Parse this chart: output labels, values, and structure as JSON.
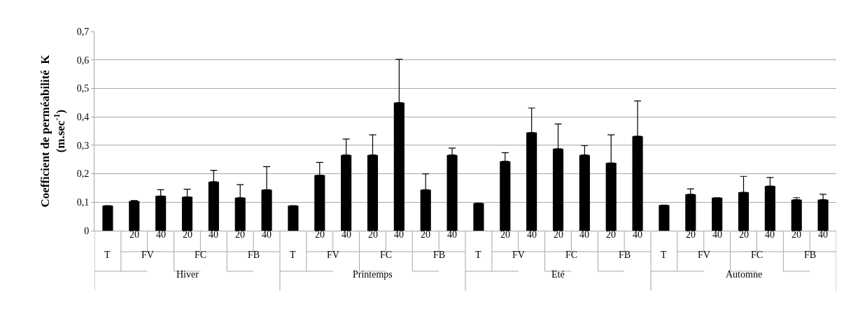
{
  "chart_data": {
    "type": "bar",
    "ylabel": "Coefficient de perméabilité  K\n(m.sec$^{-1}$)",
    "categories": [
      [
        "Hiver",
        "T",
        null
      ],
      [
        null,
        "FV",
        "20"
      ],
      [
        null,
        null,
        "40"
      ],
      [
        null,
        "FC",
        "20"
      ],
      [
        null,
        null,
        "40"
      ],
      [
        null,
        "FB",
        "20"
      ],
      [
        null,
        null,
        "40"
      ],
      [
        "Printemps",
        "T",
        null
      ],
      [
        null,
        "FV",
        "20"
      ],
      [
        null,
        null,
        "40"
      ],
      [
        null,
        "FC",
        "20"
      ],
      [
        null,
        null,
        "40"
      ],
      [
        null,
        "FB",
        "20"
      ],
      [
        null,
        null,
        "40"
      ],
      [
        "Eté",
        "T",
        null
      ],
      [
        null,
        "FV",
        "20"
      ],
      [
        null,
        null,
        "40"
      ],
      [
        null,
        "FC",
        "20"
      ],
      [
        null,
        null,
        "40"
      ],
      [
        null,
        "FB",
        "20"
      ],
      [
        null,
        null,
        "40"
      ],
      [
        "Automne",
        "T",
        null
      ],
      [
        null,
        "FV",
        "20"
      ],
      [
        null,
        null,
        "40"
      ],
      [
        null,
        "FC",
        "20"
      ],
      [
        null,
        null,
        "40"
      ],
      [
        null,
        "FB",
        "20"
      ],
      [
        null,
        null,
        "40"
      ]
    ],
    "values": [
      0.088,
      0.104,
      0.122,
      0.119,
      0.172,
      0.116,
      0.144,
      0.088,
      0.195,
      0.266,
      0.266,
      0.45,
      0.144,
      0.266,
      0.097,
      0.244,
      0.345,
      0.288,
      0.266,
      0.238,
      0.332,
      0.09,
      0.128,
      0.116,
      0.135,
      0.157,
      0.109,
      0.109
    ],
    "errors": [
      null,
      [
        0.104,
        0.106
      ],
      [
        0.122,
        0.144
      ],
      [
        0.119,
        0.146
      ],
      [
        0.172,
        0.212
      ],
      [
        0.116,
        0.162
      ],
      [
        0.144,
        0.225
      ],
      null,
      [
        0.195,
        0.24
      ],
      [
        0.266,
        0.322
      ],
      [
        0.266,
        0.337
      ],
      [
        0.45,
        0.602
      ],
      [
        0.144,
        0.2
      ],
      [
        0.266,
        0.29
      ],
      null,
      [
        0.244,
        0.274
      ],
      [
        0.345,
        0.431
      ],
      [
        0.288,
        0.375
      ],
      [
        0.266,
        0.299
      ],
      [
        0.238,
        0.337
      ],
      [
        0.332,
        0.456
      ],
      null,
      [
        0.128,
        0.147
      ],
      null,
      [
        0.135,
        0.191
      ],
      [
        0.157,
        0.187
      ],
      [
        0.109,
        0.116
      ],
      [
        0.109,
        0.128
      ]
    ],
    "color": "#000000",
    "ylim": [
      0,
      0.7
    ],
    "yticks": [
      {
        "value": 0,
        "label": "0"
      },
      {
        "value": 0.1,
        "label": "0,1"
      },
      {
        "value": 0.2,
        "label": "0,2"
      },
      {
        "value": 0.3,
        "label": "0,3"
      },
      {
        "value": 0.4,
        "label": "0,4"
      },
      {
        "value": 0.5,
        "label": "0,5"
      },
      {
        "value": 0.6,
        "label": "0,6"
      },
      {
        "value": 0.7,
        "label": "0,7"
      }
    ],
    "grid": "y"
  }
}
